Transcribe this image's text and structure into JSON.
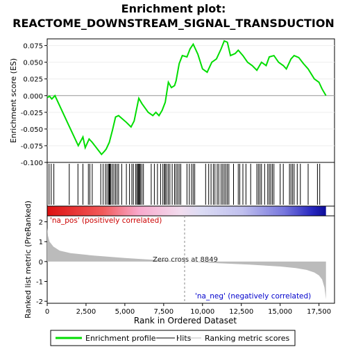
{
  "chart_data": {
    "type": "line",
    "title": "Enrichment plot:",
    "subtitle": "REACTOME_DOWNSTREAM_SIGNAL_TRANSDUCTION",
    "es_panel": {
      "ylabel": "Enrichment score (ES)",
      "ylim": [
        -0.1,
        0.085
      ],
      "yticks": [
        "0.075",
        "0.050",
        "0.025",
        "0.000",
        "-0.025",
        "-0.050",
        "-0.075",
        "-0.100"
      ],
      "ytick_values": [
        0.075,
        0.05,
        0.025,
        0.0,
        -0.025,
        -0.05,
        -0.075,
        -0.1
      ],
      "color": "#00dd00",
      "series": [
        {
          "x": [
            0,
            150,
            300,
            500,
            1400,
            2000,
            2300,
            2450,
            2700,
            2900,
            3500,
            3700,
            3800,
            4000,
            4200,
            4400,
            4600,
            5100,
            5400,
            5600,
            5900,
            6100,
            6500,
            6800,
            7000,
            7200,
            7400,
            7600,
            7800,
            8000,
            8200,
            8300,
            8500,
            8700,
            9000,
            9200,
            9400,
            9700,
            10000,
            10300,
            10600,
            10900,
            11200,
            11400,
            11600,
            11800,
            12100,
            12300,
            12600,
            12900,
            13200,
            13500,
            13800,
            14100,
            14300,
            14600,
            14900,
            15200,
            15400,
            15700,
            15900,
            16200,
            16500,
            16800,
            17200,
            17500,
            17700,
            17950
          ],
          "values": [
            -0.003,
            -0.001,
            -0.005,
            0.0,
            -0.045,
            -0.075,
            -0.062,
            -0.078,
            -0.065,
            -0.07,
            -0.088,
            -0.083,
            -0.08,
            -0.07,
            -0.052,
            -0.032,
            -0.03,
            -0.04,
            -0.047,
            -0.038,
            -0.004,
            -0.012,
            -0.025,
            -0.03,
            -0.025,
            -0.03,
            -0.022,
            -0.01,
            0.02,
            0.012,
            0.015,
            0.022,
            0.048,
            0.06,
            0.058,
            0.07,
            0.077,
            0.062,
            0.04,
            0.035,
            0.05,
            0.055,
            0.07,
            0.082,
            0.08,
            0.06,
            0.063,
            0.068,
            0.06,
            0.05,
            0.045,
            0.038,
            0.05,
            0.045,
            0.058,
            0.06,
            0.05,
            0.045,
            0.04,
            0.055,
            0.06,
            0.057,
            0.048,
            0.04,
            0.025,
            0.02,
            0.01,
            0.0
          ]
        }
      ]
    },
    "hits": [
      120,
      260,
      430,
      1420,
      1980,
      2300,
      2650,
      2750,
      2900,
      3450,
      3600,
      3750,
      3850,
      3950,
      4000,
      4050,
      4100,
      4200,
      4300,
      4400,
      4500,
      4600,
      4800,
      5100,
      5300,
      5450,
      5550,
      5700,
      5780,
      5850,
      5900,
      5950,
      6000,
      6100,
      6200,
      6700,
      6900,
      7100,
      7300,
      7450,
      7550,
      7600,
      7700,
      7800,
      7900,
      8050,
      8200,
      8300,
      8400,
      8500,
      8600,
      9000,
      9150,
      9300,
      9400,
      9500,
      10200,
      10400,
      10550,
      10700,
      10800,
      10950,
      11050,
      11200,
      11300,
      11400,
      11500,
      11600,
      11700,
      12000,
      12300,
      12400,
      12600,
      12800,
      13100,
      13500,
      13600,
      13700,
      13800,
      14000,
      14200,
      14300,
      14400,
      14500,
      14600,
      15000,
      15200,
      15600,
      15700,
      15800,
      15900,
      16100,
      16300,
      16800,
      17400,
      17550
    ],
    "x_axis": {
      "label": "Rank in Ordered Dataset",
      "xlim": [
        0,
        18500
      ],
      "ticks": [
        "0",
        "2,500",
        "5,000",
        "7,500",
        "10,000",
        "12,500",
        "15,000",
        "17,500"
      ],
      "tick_values": [
        0,
        2500,
        5000,
        7500,
        10000,
        12500,
        15000,
        17500
      ]
    },
    "metric_panel": {
      "ylabel": "Ranked list metric (PreRanked)",
      "ylim": [
        -2.1,
        2.3
      ],
      "yticks": [
        "2",
        "1",
        "0",
        "-1",
        "-2"
      ],
      "ytick_values": [
        2,
        1,
        0,
        -1,
        -2
      ],
      "x": [
        0,
        50,
        150,
        400,
        800,
        1500,
        3000,
        5000,
        7000,
        8849,
        11000,
        13000,
        15000,
        16000,
        16700,
        17200,
        17500,
        17700,
        17850,
        17950
      ],
      "values": [
        1.7,
        1.3,
        1.0,
        0.75,
        0.55,
        0.42,
        0.3,
        0.18,
        0.08,
        0.0,
        -0.08,
        -0.15,
        -0.25,
        -0.33,
        -0.42,
        -0.55,
        -0.7,
        -0.9,
        -1.3,
        -1.9
      ],
      "zero_cross_label": "Zero cross at 8849",
      "zero_cross": 8849,
      "pos_label": "'na_pos' (positively correlated)",
      "neg_label": "'na_neg' (negatively correlated)",
      "pos_color": "#cc0000",
      "neg_color": "#0000cc"
    },
    "total_rank": 17950,
    "legend": {
      "placement": "bottom",
      "entries": [
        {
          "label": "Enrichment profile",
          "color": "#00dd00",
          "kind": "line"
        },
        {
          "label": "Hits",
          "color": "#000000",
          "kind": "line"
        },
        {
          "label": "Ranking metric scores",
          "color": "#bbbbbb",
          "kind": "line"
        }
      ]
    }
  }
}
